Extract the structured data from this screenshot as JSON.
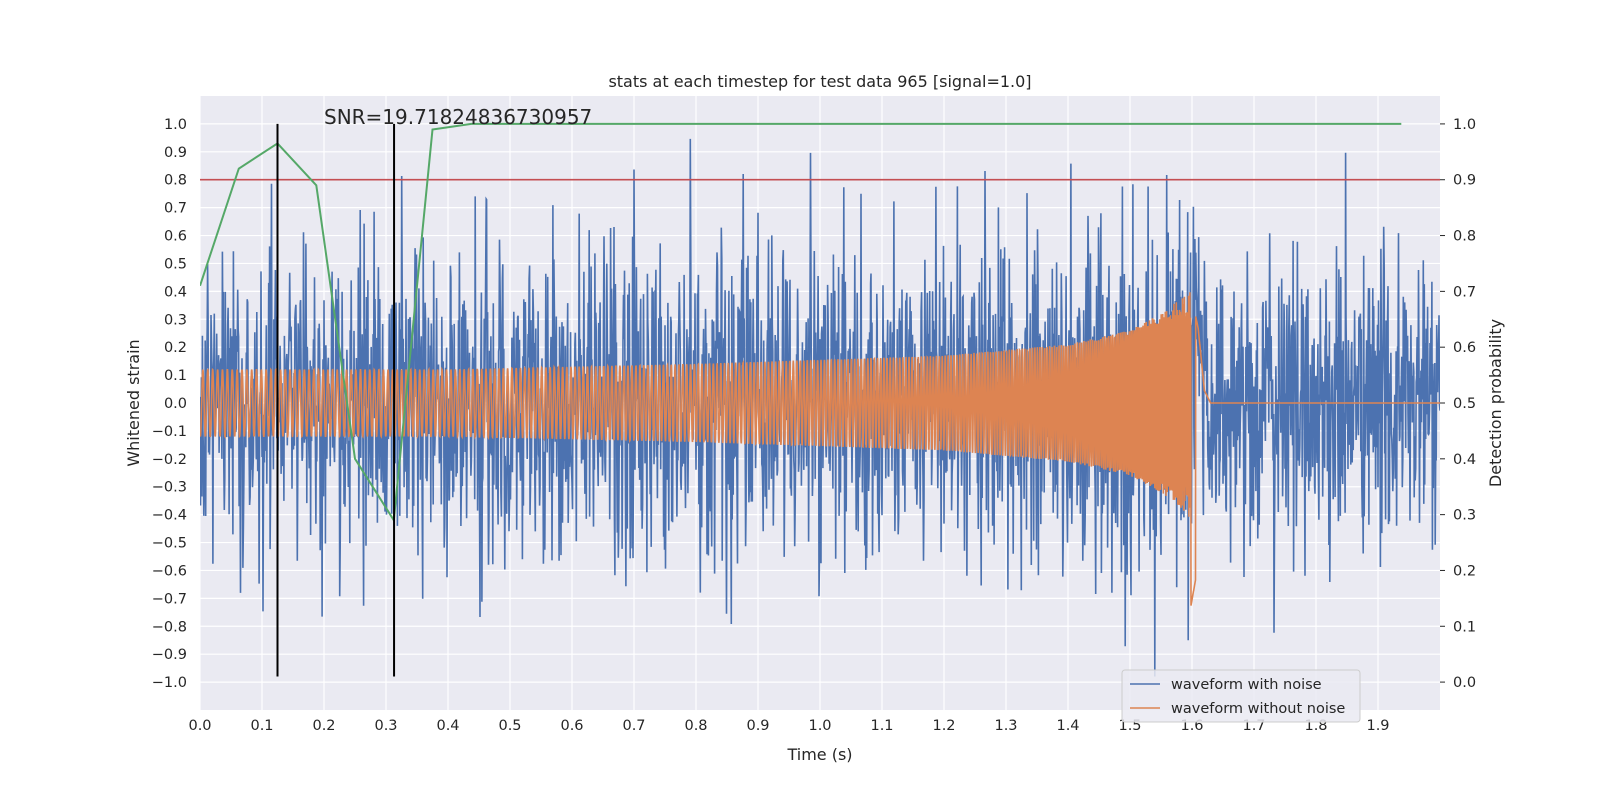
{
  "chart_data": {
    "type": "line",
    "title": "stats at each timestep for test data 965 [signal=1.0]",
    "xlabel": "Time (s)",
    "ylabel_left": "Whitened strain",
    "ylabel_right": "Detection probability",
    "xlim": [
      0.0,
      2.0
    ],
    "ylim_left": [
      -1.1,
      1.1
    ],
    "ylim_right": [
      -0.05,
      1.05
    ],
    "x_ticks": [
      "0.0",
      "0.1",
      "0.2",
      "0.3",
      "0.4",
      "0.5",
      "0.6",
      "0.7",
      "0.8",
      "0.9",
      "1.0",
      "1.1",
      "1.2",
      "1.3",
      "1.4",
      "1.5",
      "1.6",
      "1.7",
      "1.8",
      "1.9"
    ],
    "y_ticks_left": [
      "1.0",
      "0.9",
      "0.8",
      "0.7",
      "0.6",
      "0.5",
      "0.4",
      "0.3",
      "0.2",
      "0.1",
      "0.0",
      "−0.1",
      "−0.2",
      "−0.3",
      "−0.4",
      "−0.5",
      "−0.6",
      "−0.7",
      "−0.8",
      "−0.9",
      "−1.0"
    ],
    "y_ticks_right": [
      "1.0",
      "0.9",
      "0.8",
      "0.7",
      "0.6",
      "0.5",
      "0.4",
      "0.3",
      "0.2",
      "0.1",
      "0.0"
    ],
    "grid": true,
    "legend_position": "bottom-right",
    "annotation": "SNR=19.71824836730957",
    "threshold": {
      "axis": "right",
      "value": 0.9,
      "color": "#c44e52"
    },
    "vertical_markers": {
      "x": [
        0.125,
        0.313
      ],
      "ymin": -0.98,
      "ymax": 1.0,
      "color": "#000000"
    },
    "series": [
      {
        "name": "waveform with noise",
        "axis": "left",
        "color": "#4c72b0",
        "amplitude_typical": 0.3,
        "peaks": [
          0.98,
          -0.98
        ]
      },
      {
        "name": "waveform without noise",
        "axis": "left",
        "color": "#dd8452",
        "envelope": {
          "x": [
            0.0,
            0.4,
            0.8,
            1.2,
            1.4,
            1.5,
            1.55,
            1.58,
            1.6,
            1.61,
            1.62,
            1.63,
            2.0
          ],
          "amp": [
            0.12,
            0.12,
            0.14,
            0.17,
            0.21,
            0.26,
            0.32,
            0.37,
            0.42,
            0.3,
            0.05,
            0.0,
            0.0
          ]
        },
        "min": -0.73,
        "max": 0.5
      },
      {
        "name": "detection probability",
        "axis": "right",
        "color": "#55a868",
        "x": [
          0.0,
          0.0625,
          0.125,
          0.1875,
          0.25,
          0.3125,
          0.375,
          0.4375,
          0.5,
          1.9375
        ],
        "y": [
          0.71,
          0.92,
          0.965,
          0.89,
          0.4,
          0.29,
          0.99,
          1.0,
          1.0,
          1.0
        ]
      }
    ]
  }
}
